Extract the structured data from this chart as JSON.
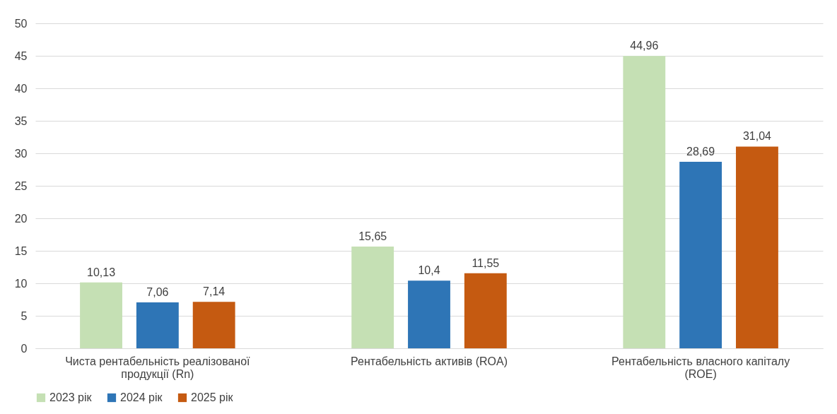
{
  "chart_data": {
    "type": "bar",
    "categories": [
      "Чиста рентабельність реалізованої продукції (Rn)",
      "Рентабельність активів (ROA)",
      "Рентабельність власного капіталу (ROE)"
    ],
    "series": [
      {
        "name": "2023 рік",
        "color": "#c5e0b4",
        "values": [
          10.13,
          15.65,
          44.96
        ],
        "value_labels": [
          "10,13",
          "15,65",
          "44,96"
        ]
      },
      {
        "name": "2024 рік",
        "color": "#2e75b6",
        "values": [
          7.06,
          10.4,
          28.69
        ],
        "value_labels": [
          "7,06",
          "10,4",
          "28,69"
        ]
      },
      {
        "name": "2025 рік",
        "color": "#c55a11",
        "values": [
          7.14,
          11.55,
          31.04
        ],
        "value_labels": [
          "7,14",
          "11,55",
          "31,04"
        ]
      }
    ],
    "ylim": [
      0,
      50
    ],
    "yticks": [
      0,
      5,
      10,
      15,
      20,
      25,
      30,
      35,
      40,
      45,
      50
    ],
    "grid": "y",
    "legend": "bottom"
  }
}
